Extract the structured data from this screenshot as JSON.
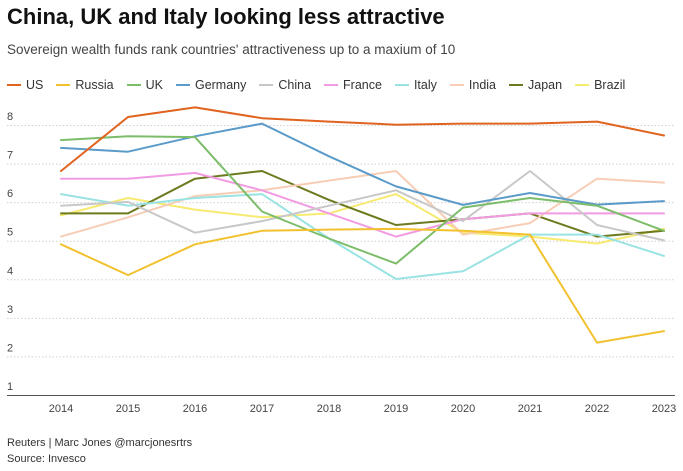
{
  "header": {
    "title": "China, UK and Italy looking less attractive",
    "subtitle": "Sovereign wealth funds rank countries' attractiveness up to a maxium of 10"
  },
  "footer": {
    "credit": "Reuters | Marc Jones @marcjonesrtrs",
    "source": "Source: Invesco"
  },
  "chart_data": {
    "type": "line",
    "title": "China, UK and Italy looking less attractive",
    "subtitle": "Sovereign wealth funds rank countries' attractiveness up to a maxium of 10",
    "x": [
      "2014",
      "2015",
      "2016",
      "2017",
      "2018",
      "2019",
      "2020",
      "2021",
      "2022",
      "2023"
    ],
    "ylim": [
      1,
      8
    ],
    "yticks": [
      "1",
      "2",
      "3",
      "4",
      "5",
      "6",
      "7",
      "8"
    ],
    "grid": "horizontal dotted",
    "legend_position": "top",
    "series": [
      {
        "name": "US",
        "color": "#e0641f",
        "values": [
          6.6,
          8.0,
          8.25,
          7.97,
          7.88,
          7.8,
          7.83,
          7.83,
          7.88,
          7.52
        ]
      },
      {
        "name": "Russia",
        "color": "#f2c12e",
        "values": [
          4.7,
          3.9,
          4.7,
          5.05,
          5.08,
          5.1,
          5.05,
          4.95,
          2.15,
          2.45
        ]
      },
      {
        "name": "UK",
        "color": "#7cbd6a",
        "values": [
          7.4,
          7.5,
          7.48,
          5.55,
          4.85,
          4.2,
          5.65,
          5.9,
          5.7,
          5.05
        ]
      },
      {
        "name": "Germany",
        "color": "#5b9bc9",
        "values": [
          7.2,
          7.1,
          7.5,
          7.83,
          6.98,
          6.2,
          5.72,
          6.03,
          5.73,
          5.82
        ]
      },
      {
        "name": "China",
        "color": "#c8c8c8",
        "values": [
          5.7,
          5.8,
          5.0,
          5.3,
          5.7,
          6.1,
          5.3,
          6.6,
          5.2,
          4.8
        ]
      },
      {
        "name": "France",
        "color": "#f29be3",
        "values": [
          6.4,
          6.4,
          6.55,
          6.1,
          5.5,
          4.9,
          5.35,
          5.5,
          5.5,
          5.5
        ]
      },
      {
        "name": "Italy",
        "color": "#9ae3e3",
        "values": [
          6.0,
          5.7,
          5.9,
          6.0,
          4.85,
          3.8,
          4.0,
          4.95,
          4.95,
          4.4
        ]
      },
      {
        "name": "India",
        "color": "#f7cdb5",
        "values": [
          4.9,
          5.4,
          5.95,
          6.1,
          6.35,
          6.6,
          4.95,
          5.25,
          6.4,
          6.3
        ]
      },
      {
        "name": "Japan",
        "color": "#6e7a1f",
        "values": [
          5.5,
          5.5,
          6.4,
          6.6,
          5.85,
          5.2,
          5.35,
          5.5,
          4.9,
          5.05
        ]
      },
      {
        "name": "Brazil",
        "color": "#f7ea70",
        "values": [
          5.45,
          5.9,
          5.6,
          5.4,
          5.5,
          6.0,
          5.0,
          4.9,
          4.72,
          5.1
        ]
      }
    ]
  }
}
